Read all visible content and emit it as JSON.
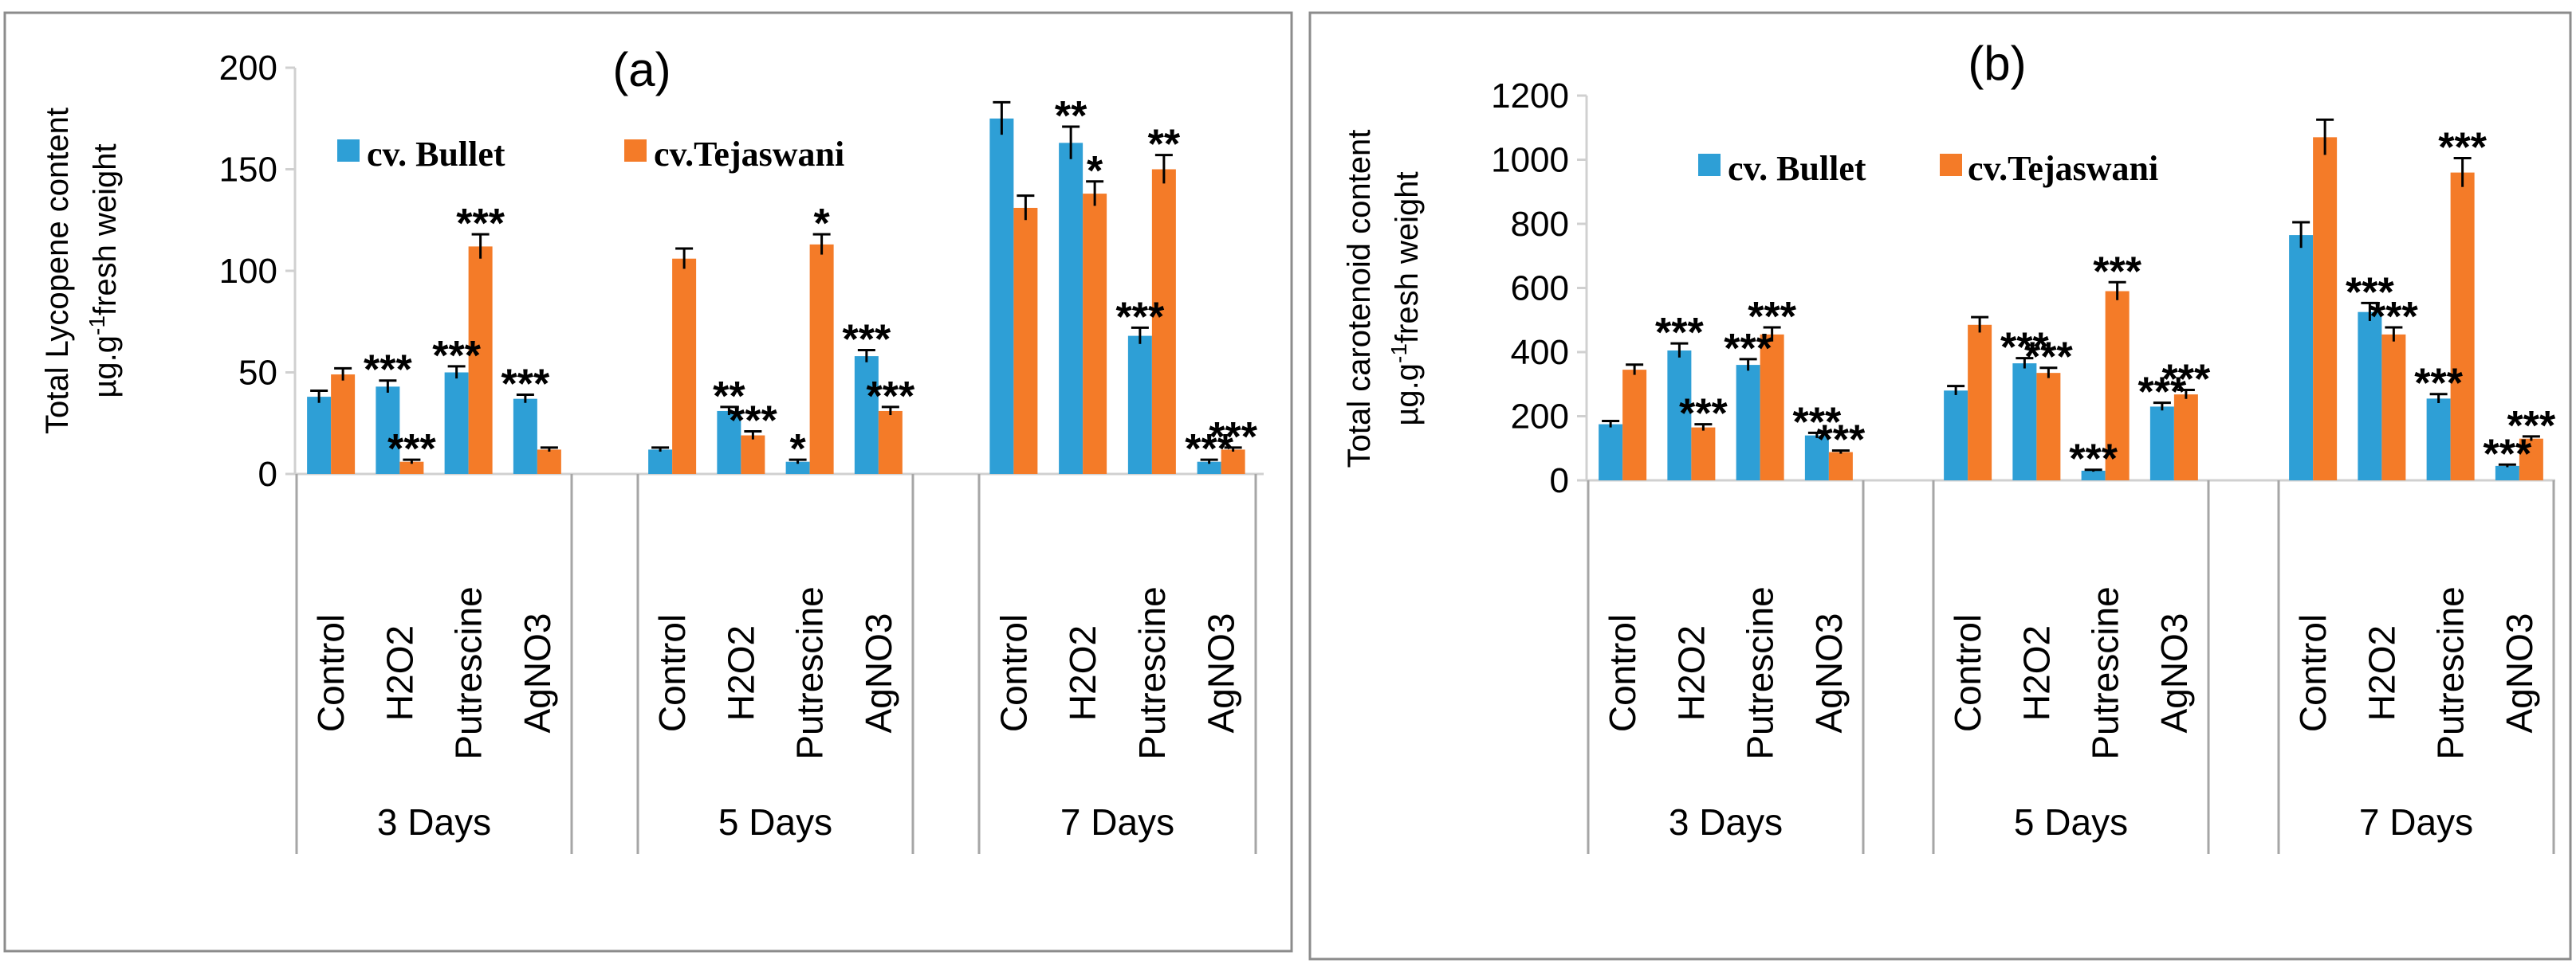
{
  "colors": {
    "bullet": "#2e9fd6",
    "tejaswani": "#f47b28"
  },
  "legend": {
    "series1": "cv. Bullet",
    "series2": "cv.Tejaswani"
  },
  "chart_data": [
    {
      "type": "bar",
      "panel": "(a)",
      "ylabel_line1": "Total Lycopene content",
      "ylabel_line2_prefix": "µg.g",
      "ylabel_line2_sup": "-1",
      "ylabel_line2_suffix": "fresh weight",
      "ylim": [
        0,
        200
      ],
      "yticks": [
        0,
        50,
        100,
        150,
        200
      ],
      "groups": [
        "3 Days",
        "5 Days",
        "7 Days"
      ],
      "categories": [
        "Control",
        "H2O2",
        "Putrescine",
        "AgNO3"
      ],
      "series": [
        {
          "name": "cv. Bullet",
          "values": [
            [
              38,
              43,
              50,
              37
            ],
            [
              12,
              31,
              6,
              58
            ],
            [
              175,
              163,
              68,
              6
            ]
          ],
          "errors": [
            [
              3,
              3,
              3,
              2
            ],
            [
              1,
              2,
              1,
              3
            ],
            [
              8,
              8,
              4,
              1
            ]
          ]
        },
        {
          "name": "cv.Tejaswani",
          "values": [
            [
              49,
              6,
              112,
              12
            ],
            [
              106,
              19,
              113,
              31
            ],
            [
              131,
              138,
              150,
              12
            ]
          ],
          "errors": [
            [
              3,
              1,
              6,
              1
            ],
            [
              5,
              2,
              5,
              2
            ],
            [
              6,
              6,
              7,
              1
            ]
          ]
        }
      ],
      "annotations": [
        {
          "text": "***",
          "group": 0,
          "cat": 1,
          "series": 0
        },
        {
          "text": "***",
          "group": 0,
          "cat": 1,
          "series": 1
        },
        {
          "text": "***",
          "group": 0,
          "cat": 2,
          "series": 0
        },
        {
          "text": "***",
          "group": 0,
          "cat": 2,
          "series": 1
        },
        {
          "text": "***",
          "group": 0,
          "cat": 3,
          "series": 0
        },
        {
          "text": "**",
          "group": 1,
          "cat": 1,
          "series": 0
        },
        {
          "text": "***",
          "group": 1,
          "cat": 1,
          "series": 1
        },
        {
          "text": "*",
          "group": 1,
          "cat": 2,
          "series": 0
        },
        {
          "text": "*",
          "group": 1,
          "cat": 2,
          "series": 1
        },
        {
          "text": "***",
          "group": 1,
          "cat": 3,
          "series": 0
        },
        {
          "text": "***",
          "group": 1,
          "cat": 3,
          "series": 1
        },
        {
          "text": "**",
          "group": 2,
          "cat": 1,
          "series": 0
        },
        {
          "text": "*",
          "group": 2,
          "cat": 1,
          "series": 1
        },
        {
          "text": "***",
          "group": 2,
          "cat": 2,
          "series": 0
        },
        {
          "text": "**",
          "group": 2,
          "cat": 2,
          "series": 1
        },
        {
          "text": "***",
          "group": 2,
          "cat": 3,
          "series": 0
        },
        {
          "text": "***",
          "group": 2,
          "cat": 3,
          "series": 1
        }
      ]
    },
    {
      "type": "bar",
      "panel": "(b)",
      "ylabel_line1": "Total carotenoid content",
      "ylabel_line2_prefix": "µg.g",
      "ylabel_line2_sup": "-1",
      "ylabel_line2_suffix": "fresh weight",
      "ylim": [
        0,
        1200
      ],
      "yticks": [
        0,
        200,
        400,
        600,
        800,
        1000,
        1200
      ],
      "groups": [
        "3 Days",
        "5 Days",
        "7 Days"
      ],
      "categories": [
        "Control",
        "H2O2",
        "Putrescine",
        "AgNO3"
      ],
      "series": [
        {
          "name": "cv. Bullet",
          "values": [
            [
              175,
              405,
              360,
              140
            ],
            [
              280,
              365,
              30,
              230
            ],
            [
              765,
              525,
              255,
              45
            ]
          ],
          "errors": [
            [
              10,
              22,
              18,
              8
            ],
            [
              14,
              16,
              3,
              12
            ],
            [
              40,
              28,
              14,
              4
            ]
          ]
        },
        {
          "name": "cv.Tejaswani",
          "values": [
            [
              345,
              165,
              455,
              88
            ],
            [
              485,
              335,
              590,
              268
            ],
            [
              1070,
              455,
              960,
              130
            ]
          ],
          "errors": [
            [
              16,
              10,
              22,
              5
            ],
            [
              24,
              16,
              28,
              14
            ],
            [
              55,
              22,
              45,
              7
            ]
          ]
        }
      ],
      "annotations": [
        {
          "text": "***",
          "group": 0,
          "cat": 1,
          "series": 0
        },
        {
          "text": "***",
          "group": 0,
          "cat": 1,
          "series": 1
        },
        {
          "text": "***",
          "group": 0,
          "cat": 2,
          "series": 0
        },
        {
          "text": "***",
          "group": 0,
          "cat": 2,
          "series": 1
        },
        {
          "text": "***",
          "group": 0,
          "cat": 3,
          "series": 0
        },
        {
          "text": "***",
          "group": 0,
          "cat": 3,
          "series": 1
        },
        {
          "text": "***",
          "group": 1,
          "cat": 1,
          "series": 0
        },
        {
          "text": "***",
          "group": 1,
          "cat": 1,
          "series": 1
        },
        {
          "text": "***",
          "group": 1,
          "cat": 2,
          "series": 0
        },
        {
          "text": "***",
          "group": 1,
          "cat": 2,
          "series": 1
        },
        {
          "text": "***",
          "group": 1,
          "cat": 3,
          "series": 0
        },
        {
          "text": "***",
          "group": 1,
          "cat": 3,
          "series": 1
        },
        {
          "text": "***",
          "group": 2,
          "cat": 1,
          "series": 0
        },
        {
          "text": "***",
          "group": 2,
          "cat": 1,
          "series": 1
        },
        {
          "text": "***",
          "group": 2,
          "cat": 2,
          "series": 0
        },
        {
          "text": "***",
          "group": 2,
          "cat": 2,
          "series": 1
        },
        {
          "text": "***",
          "group": 2,
          "cat": 3,
          "series": 0
        },
        {
          "text": "***",
          "group": 2,
          "cat": 3,
          "series": 1
        }
      ]
    }
  ]
}
